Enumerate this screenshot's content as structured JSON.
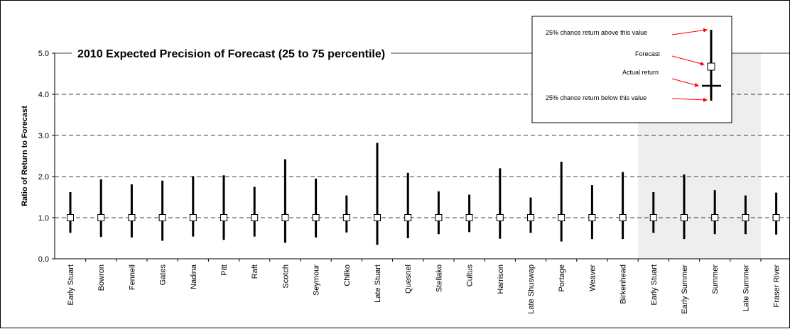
{
  "chart_data": {
    "type": "range",
    "title": "2010 Expected Precision of Forecast (25 to 75 percentile)",
    "ylabel": "Ratio of Return to Forecast",
    "xlabel": "",
    "ylim": [
      0.0,
      5.0
    ],
    "yticks": [
      "0.0",
      "1.0",
      "2.0",
      "3.0",
      "4.0",
      "5.0"
    ],
    "grid": "dashed horizontal",
    "shaded_group": [
      "Early Stuart",
      "Early Summer",
      "Summer",
      "Late Summer"
    ],
    "categories": [
      "Early Stuart",
      "Bowron",
      "Fennell",
      "Gates",
      "Nadina",
      "Pitt",
      "Raft",
      "Scotch",
      "Seymour",
      "Chilko",
      "Late Stuart",
      "Quesnel",
      "Stellako",
      "Cultus",
      "Harrison",
      "Late Shuswap",
      "Portage",
      "Weaver",
      "Birkenhead",
      "Early Stuart",
      "Early Summer",
      "Summer",
      "Late Summer",
      "Fraser River"
    ],
    "series": [
      {
        "forecast": [
          1.0,
          1.0,
          1.0,
          1.0,
          1.0,
          1.0,
          1.0,
          1.0,
          1.0,
          1.0,
          1.0,
          1.0,
          1.0,
          1.0,
          1.0,
          1.0,
          1.0,
          1.0,
          1.0,
          1.0,
          1.0,
          1.0,
          1.0,
          1.0
        ],
        "p75": [
          1.62,
          1.93,
          1.81,
          1.9,
          2.01,
          2.03,
          1.75,
          2.42,
          1.95,
          1.54,
          2.82,
          2.09,
          1.64,
          1.56,
          2.2,
          1.49,
          2.36,
          1.79,
          2.11,
          1.62,
          2.05,
          1.67,
          1.54,
          1.61
        ],
        "p25": [
          0.63,
          0.53,
          0.52,
          0.44,
          0.54,
          0.46,
          0.54,
          0.39,
          0.52,
          0.64,
          0.34,
          0.5,
          0.6,
          0.65,
          0.49,
          0.63,
          0.42,
          0.48,
          0.48,
          0.63,
          0.48,
          0.6,
          0.6,
          0.59
        ]
      }
    ]
  },
  "legend": {
    "above": "25% chance return above this value",
    "forecast": "Forecast",
    "actual": "Actual return",
    "below": "25% chance return below this value"
  }
}
